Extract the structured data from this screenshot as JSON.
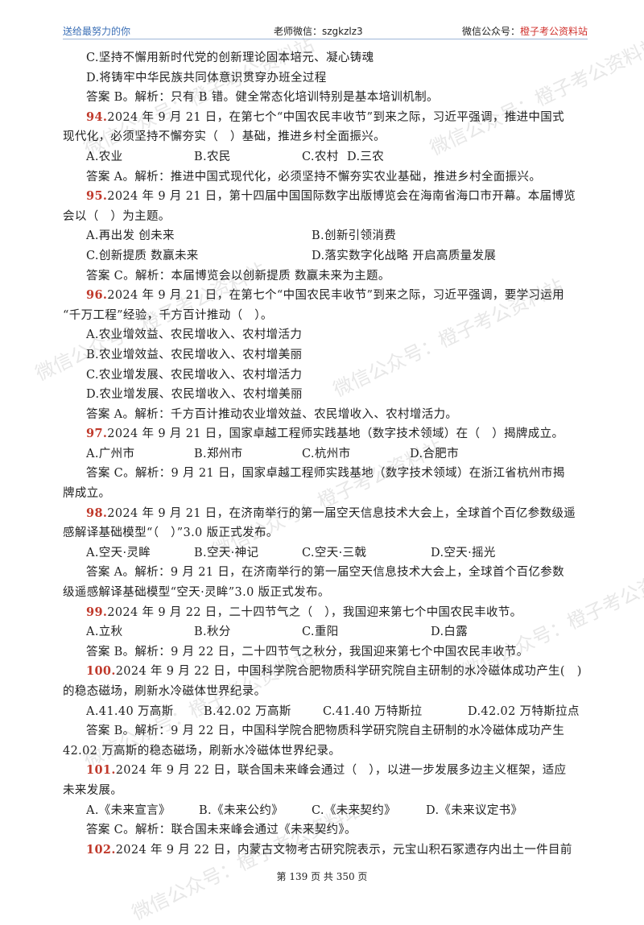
{
  "header": {
    "left": "送给最努力的你",
    "center": "老师微信：szgkzlz3",
    "right_prefix": "微信公众号：",
    "right_highlight": "橙子考公资料站"
  },
  "lines": [
    {
      "text": "C.坚持不懈用新时代党的创新理论固本培元、凝心铸魂"
    },
    {
      "text": "D.将铸牢中华民族共同体意识贯穿办班全过程"
    },
    {
      "text": "答案 B。解析：只有 B 错。健全常态化培训特别是基本培训机制。"
    },
    {
      "num": "94.",
      "text": "2024 年 9 月 21 日，在第七个“中国农民丰收节”到来之际，习近平强调，推进中国式"
    },
    {
      "text": "现代化，必须坚持不懈夯实（　）基础，推进乡村全面振兴。",
      "flush": true
    },
    {
      "opts": [
        "A.农业",
        "B.农民",
        "C.农村",
        "D.三农"
      ],
      "widths": [
        134,
        134,
        56,
        100
      ]
    },
    {
      "text": "答案 A。解析：推进中国式现代化，必须坚持不懈夯实农业基础，推进乡村全面振兴。"
    },
    {
      "num": "95.",
      "text": "2024 年 9 月 21 日，第十四届中国国际数字出版博览会在海南省海口市开幕。本届博览"
    },
    {
      "text": "会以（　）为主题。",
      "flush": true
    },
    {
      "opts": [
        "A.再出发 创未来",
        "B.创新引领消费"
      ],
      "widths": [
        280,
        300
      ]
    },
    {
      "opts": [
        "C.创新提质 数赢未来",
        "D.落实数字化战略 开启高质量发展"
      ],
      "widths": [
        280,
        320
      ]
    },
    {
      "text": "答案 C。解析：本届博览会以创新提质 数赢未来为主题。"
    },
    {
      "num": "96.",
      "text": "2024 年 9 月 21 日，在第七个“中国农民丰收节”到来之际，习近平强调，要学习运用"
    },
    {
      "text": "“千万工程”经验，千方百计推动（　）。",
      "flush": true
    },
    {
      "text": "A.农业增效益、农民增收入、农村增活力"
    },
    {
      "text": "B.农业增效益、农民增收入、农村增美丽"
    },
    {
      "text": "C.农业增发展、农民增收入、农村增活力"
    },
    {
      "text": "D.农业增发展、农民增收入、农村增美丽"
    },
    {
      "text": "答案 A。解析：千方百计推动农业增效益、农民增收入、农村增活力。"
    },
    {
      "num": "97.",
      "text": "2024 年 9 月 21 日，国家卓越工程师实践基地（数字技术领域）在（　）揭牌成立。"
    },
    {
      "opts": [
        "A.广州市",
        "B.郑州市",
        "C.杭州市",
        "D.合肥市"
      ],
      "widths": [
        134,
        134,
        134,
        100
      ]
    },
    {
      "text": "答案 C。解析：9 月 21 日，国家卓越工程师实践基地（数字技术领域）在浙江省杭州市揭"
    },
    {
      "text": "牌成立。",
      "flush": true
    },
    {
      "num": "98.",
      "text": "2024 年 9 月 21 日，在济南举行的第一届空天信息技术大会上，全球首个百亿参数级遥"
    },
    {
      "text": "感解译基础模型“（　）”3.0 版正式发布。",
      "flush": true
    },
    {
      "opts": [
        "A.空天·灵眸",
        "B.空天·神记",
        "C.空天·三戟",
        "D.空天·摇光"
      ],
      "widths": [
        134,
        134,
        160,
        110
      ]
    },
    {
      "text": "答案 A。解析：9 月 21 日，在济南举行的第一届空天信息技术大会上，全球首个百亿参数"
    },
    {
      "text": "级遥感解译基础模型“空天·灵眸”3.0 版正式发布。",
      "flush": true
    },
    {
      "num": "99.",
      "text": "2024 年 9 月 22 日，二十四节气之（　），我国迎来第七个中国农民丰收节。"
    },
    {
      "opts": [
        "A.立秋",
        "B.秋分",
        "C.重阳",
        "D.白露"
      ],
      "widths": [
        134,
        134,
        160,
        100
      ]
    },
    {
      "text": "答案 B。解析：9 月 22 日，二十四节气之秋分，我国迎来第七个中国农民丰收节。"
    },
    {
      "num": "100.",
      "text": "2024 年 9 月 22 日，中国科学院合肥物质科学研究院自主研制的水冷磁体成功产生(　)"
    },
    {
      "text": "的稳态磁场，刷新水冷磁体世界纪录。",
      "flush": true
    },
    {
      "opts": [
        "A.41.40 万高斯",
        "B.42.02 万高斯",
        "C.41.40 万特斯拉",
        "D.42.02 万特斯拉点"
      ],
      "widths": [
        146,
        148,
        180,
        140
      ]
    },
    {
      "text": "答案 B。解析：9 月 22 日，中国科学院合肥物质科学研究院自主研制的水冷磁体成功产生"
    },
    {
      "text": "42.02 万高斯的稳态磁场，刷新水冷磁体世界纪录。",
      "flush": true
    },
    {
      "num": "101.",
      "text": "2024 年 9 月 22 日，联合国未来峰会通过（　），以进一步发展多边主义框架，适应"
    },
    {
      "text": "未来发展。",
      "flush": true
    },
    {
      "opts": [
        "A.《未来宣言》",
        "B.《未来公约》",
        "C.《未来契约》",
        "D.《未来议定书》"
      ],
      "widths": [
        140,
        140,
        142,
        140
      ]
    },
    {
      "text": "答案 C。解析：联合国未来峰会通过《未来契约》。"
    },
    {
      "num": "102.",
      "text": "2024 年 9 月 22 日，内蒙古文物考古研究院表示，元宝山积石冢遗存内出土一件目前"
    }
  ],
  "watermarks": [
    "微信公众号：橙子考公资料站",
    "微信公众号：橙子考公资料站",
    "微信公众号：橙子考公资料站",
    "微信公众号：橙子考公资料站",
    "微信公众号：橙子考公资料站",
    "微信公众号：橙子考公资料站",
    "微信公众号：橙子考公资料站",
    "微信公众号：橙子考公资料站"
  ],
  "footer": "第 139 页 共 350 页"
}
